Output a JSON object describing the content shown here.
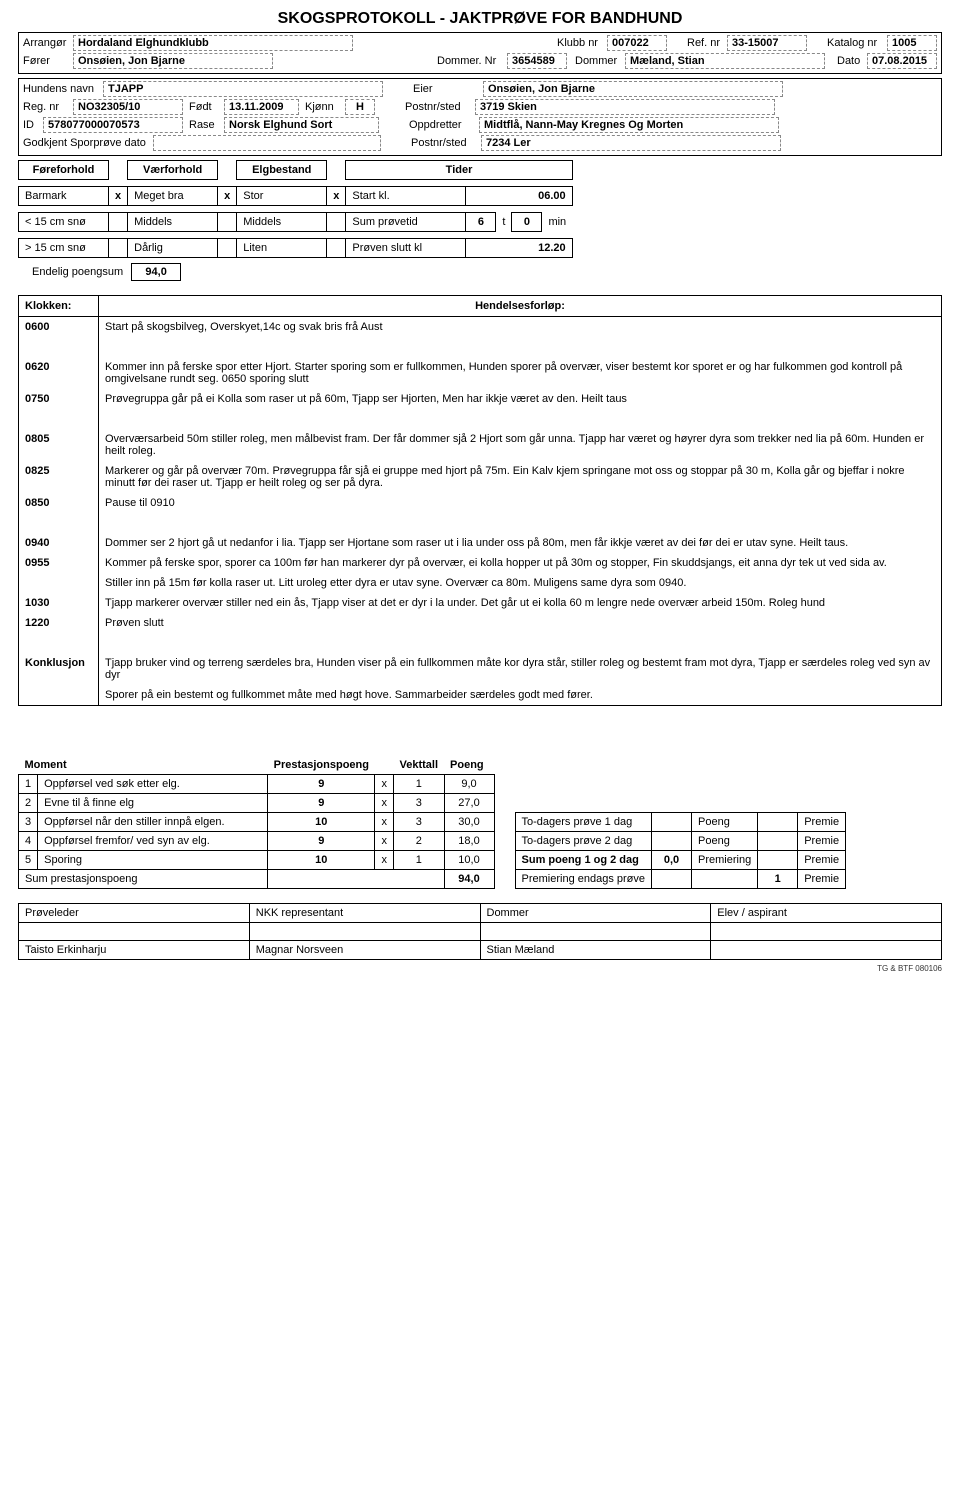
{
  "title": "SKOGSPROTOKOLL - JAKTPRØVE FOR BANDHUND",
  "header": {
    "arrangor_lbl": "Arrangør",
    "arrangor": "Hordaland Elghundklubb",
    "klubbnr_lbl": "Klubb nr",
    "klubbnr": "007022",
    "refnr_lbl": "Ref. nr",
    "refnr": "33-15007",
    "katalognr_lbl": "Katalog nr",
    "katalognr": "1005",
    "forer_lbl": "Fører",
    "forer": "Onsøien, Jon Bjarne",
    "dommernr_lbl": "Dommer. Nr",
    "dommernr": "3654589",
    "dommer_lbl": "Dommer",
    "dommer": "Mæland, Stian",
    "dato_lbl": "Dato",
    "dato": "07.08.2015"
  },
  "dog": {
    "hundensnavn_lbl": "Hundens navn",
    "hundensnavn": "TJAPP",
    "eier_lbl": "Eier",
    "eier": "Onsøien, Jon Bjarne",
    "regnr_lbl": "Reg. nr",
    "regnr": "NO32305/10",
    "fodt_lbl": "Født",
    "fodt": "13.11.2009",
    "kjonn_lbl": "Kjønn",
    "kjonn": "H",
    "postnr_lbl": "Postnr/sted",
    "postnr": "3719 Skien",
    "id_lbl": "ID",
    "id": "578077000070573",
    "rase_lbl": "Rase",
    "rase": "Norsk Elghund Sort",
    "oppdretter_lbl": "Oppdretter",
    "oppdretter": "Midtflå, Nann-May Kregnes Og Morten",
    "godkjent_lbl": "Godkjent Sporprøve dato",
    "postnr2_lbl": "Postnr/sted",
    "postnr2": "7234 Ler"
  },
  "cond": {
    "col1": "Føreforhold",
    "col2": "Værforhold",
    "col3": "Elgbestand",
    "col4": "Tider",
    "rows": [
      {
        "c1": "Barmark",
        "x1": "x",
        "c2": "Meget bra",
        "x2": "x",
        "c3": "Stor",
        "x3": "x",
        "c4": "Start kl.",
        "v": "06.00"
      },
      {
        "c1": "< 15 cm snø",
        "x1": "",
        "c2": "Middels",
        "x2": "",
        "c3": "Middels",
        "x3": "",
        "c4": "Sum prøvetid",
        "vt": "6",
        "tlbl": "t",
        "vm": "0",
        "mlbl": "min"
      },
      {
        "c1": "> 15 cm snø",
        "x1": "",
        "c2": "Dårlig",
        "x2": "",
        "c3": "Liten",
        "x3": "",
        "c4": "Prøven slutt kl",
        "v": "12.20"
      }
    ],
    "endelig_lbl": "Endelig poengsum",
    "endelig": "94,0"
  },
  "events": {
    "klokken_lbl": "Klokken:",
    "hendelse_lbl": "Hendelsesforløp:",
    "rows": [
      {
        "t": "0600",
        "d": "Start på skogsbilveg, Overskyet,14c og  svak bris frå Aust"
      },
      {
        "t": "",
        "d": ""
      },
      {
        "t": "0620",
        "d": "Kommer inn på ferske spor etter Hjort. Starter sporing som er fullkommen, Hunden sporer på overvær, viser bestemt kor sporet er og har fulkommen god kontroll på omgivelsane rundt seg. 0650 sporing slutt"
      },
      {
        "t": "0750",
        "d": "Prøvegruppa går  på ei Kolla som raser ut på 60m, Tjapp ser Hjorten, Men har ikkje været av den. Heilt taus"
      },
      {
        "t": "",
        "d": ""
      },
      {
        "t": "0805",
        "d": "Overværsarbeid 50m stiller roleg, men målbevist fram. Der får dommer sjå 2 Hjort som går unna. Tjapp har været og høyrer  dyra som  trekker ned lia på 60m. Hunden er heilt roleg."
      },
      {
        "t": "0825",
        "d": "Markerer og går på overvær 70m. Prøvegruppa får sjå ei gruppe med hjort på 75m. Ein Kalv kjem springane mot oss og stoppar på 30 m, Kolla går og bjeffar i nokre minutt før dei raser ut. Tjapp er heilt roleg og ser på dyra."
      },
      {
        "t": "0850",
        "d": "Pause til 0910"
      },
      {
        "t": "",
        "d": ""
      },
      {
        "t": "0940",
        "d": "Dommer ser 2 hjort gå ut nedanfor i lia. Tjapp  ser Hjortane som raser ut i lia under oss på 80m, men får ikkje været av dei før dei er utav syne. Heilt taus."
      },
      {
        "t": "0955",
        "d": " Kommer på ferske spor, sporer ca 100m før han markerer dyr på overvær, ei kolla hopper ut på 30m og stopper,  Fin skuddsjangs,  eit anna dyr tek ut ved sida av."
      },
      {
        "t": "",
        "d": " Stiller inn på 15m før kolla raser ut. Litt uroleg etter dyra er utav syne. Overvær ca 80m.  Muligens same dyra som 0940."
      },
      {
        "t": "1030",
        "d": "Tjapp markerer overvær stiller ned ein ås, Tjapp viser at det er dyr i la under. Det går ut ei kolla 60 m lengre nede overvær arbeid 150m. Roleg hund"
      },
      {
        "t": "1220",
        "d": "Prøven slutt"
      },
      {
        "t": "",
        "d": ""
      },
      {
        "t": "Konklusjon",
        "d": "Tjapp bruker vind og terreng  særdeles bra, Hunden viser på ein fullkommen måte kor dyra står, stiller roleg og bestemt fram mot dyra,  Tjapp er særdeles roleg ved syn av dyr"
      },
      {
        "t": "",
        "d": "Sporer på ein bestemt og fullkommet måte med høgt hove. Sammarbeider særdeles godt med fører."
      }
    ]
  },
  "score": {
    "moment_lbl": "Moment",
    "prest_lbl": "Prestasjonspoeng",
    "vekt_lbl": "Vekttall",
    "poeng_lbl": "Poeng",
    "rows": [
      {
        "n": "1",
        "t": "Oppførsel ved søk etter elg.",
        "p": "9",
        "x": "x",
        "v": "1",
        "s": "9,0"
      },
      {
        "n": "2",
        "t": "Evne til å finne elg",
        "p": "9",
        "x": "x",
        "v": "3",
        "s": "27,0"
      },
      {
        "n": "3",
        "t": "Oppførsel når den stiller innpå elgen.",
        "p": "10",
        "x": "x",
        "v": "3",
        "s": "30,0"
      },
      {
        "n": "4",
        "t": "Oppførsel fremfor/ ved syn av elg.",
        "p": "9",
        "x": "x",
        "v": "2",
        "s": "18,0"
      },
      {
        "n": "5",
        "t": "Sporing",
        "p": "10",
        "x": "x",
        "v": "1",
        "s": "10,0"
      }
    ],
    "sum_lbl": "Sum prestasjonspoeng",
    "sum": "94,0",
    "right": {
      "r1l": "To-dagers prøve  1 dag",
      "r1p": "Poeng",
      "r1pr": "Premie",
      "r2l": "To-dagers prøve  2 dag",
      "r2p": "Poeng",
      "r2pr": "Premie",
      "sum_lbl": "Sum poeng  1  og 2 dag",
      "sum": "0,0",
      "sump": "Premiering",
      "sumpr": "Premie",
      "end_lbl": "Premiering endags prøve",
      "end_n": "1",
      "end_pr": "Premie"
    }
  },
  "sig": {
    "h1": "Prøveleder",
    "h2": "NKK representant",
    "h3": "Dommer",
    "h4": "Elev / aspirant",
    "v1": "Taisto Erkinharju",
    "v2": "Magnar Norsveen",
    "v3": "Stian Mæland",
    "v4": ""
  },
  "footnote": "TG & BTF 080106"
}
